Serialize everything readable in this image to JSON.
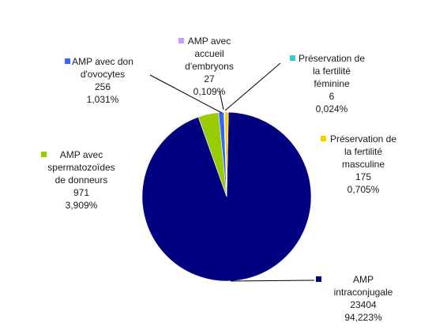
{
  "chart_data": {
    "type": "pie",
    "title": "",
    "slices": [
      {
        "label": [
          "AMP",
          "intraconjugale"
        ],
        "value": 23404,
        "value_text": "23404",
        "percent_text": "94,223%",
        "percent": 94.223,
        "color": "#000080"
      },
      {
        "label": [
          "AMP avec",
          "spermatozoïdes",
          "de donneurs"
        ],
        "value": 971,
        "value_text": "971",
        "percent_text": "3,909%",
        "percent": 3.909,
        "color": "#99cc00"
      },
      {
        "label": [
          "AMP avec don",
          "d'ovocytes"
        ],
        "value": 256,
        "value_text": "256",
        "percent_text": "1,031%",
        "percent": 1.031,
        "color": "#3366ff"
      },
      {
        "label": [
          "AMP avec",
          "accueil",
          "d'embryons"
        ],
        "value": 27,
        "value_text": "27",
        "percent_text": "0,109%",
        "percent": 0.109,
        "color": "#cc99ff"
      },
      {
        "label": [
          "Préservation de",
          "la fertilité",
          "féminine"
        ],
        "value": 6,
        "value_text": "6",
        "percent_text": "0,024%",
        "percent": 0.024,
        "color": "#33cccc"
      },
      {
        "label": [
          "Préservation de",
          "la fertilité",
          "masculine"
        ],
        "value": 175,
        "value_text": "175",
        "percent_text": "0,705%",
        "percent": 0.705,
        "color": "#ffcc00"
      }
    ]
  }
}
